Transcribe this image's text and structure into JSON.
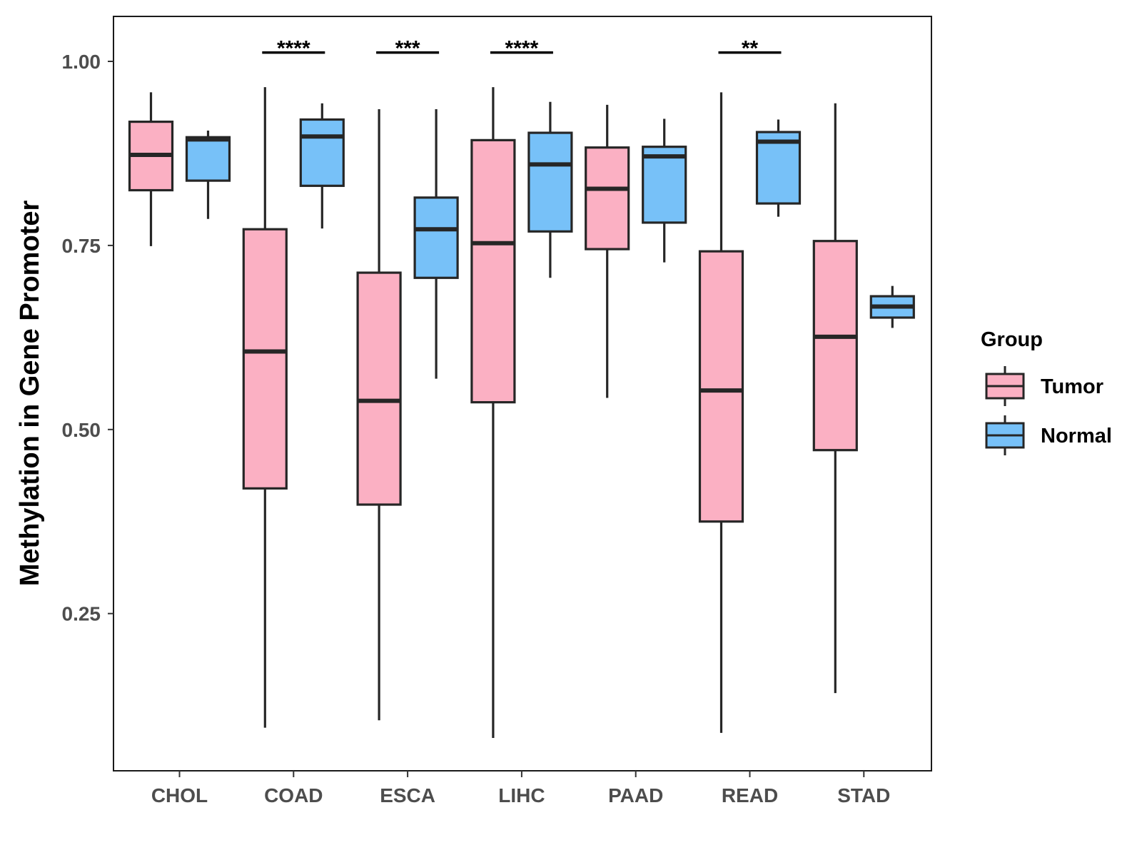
{
  "chart_data": {
    "type": "boxplot",
    "title": "",
    "xlabel": "",
    "ylabel": "Methylation in Gene Promoter",
    "ylim": [
      0.05,
      1.065
    ],
    "yticks": [
      0.25,
      0.5,
      0.75,
      1.0
    ],
    "ytick_labels": [
      "0.25",
      "0.50",
      "0.75",
      "1.00"
    ],
    "grid": false,
    "categories": [
      "CHOL",
      "COAD",
      "ESCA",
      "LIHC",
      "PAAD",
      "READ",
      "STAD"
    ],
    "legend": {
      "title": "Group",
      "position": "right",
      "entries": [
        {
          "name": "Tumor",
          "color": "#FBB0C3"
        },
        {
          "name": "Normal",
          "color": "#77C1F8"
        }
      ]
    },
    "series": [
      {
        "name": "Tumor",
        "color": "#FBB0C3",
        "boxes": [
          {
            "whisker_low": 0.749,
            "q1": 0.825,
            "median": 0.873,
            "q3": 0.918,
            "whisker_high": 0.958
          },
          {
            "whisker_low": 0.095,
            "q1": 0.42,
            "median": 0.606,
            "q3": 0.772,
            "whisker_high": 0.965
          },
          {
            "whisker_low": 0.105,
            "q1": 0.398,
            "median": 0.539,
            "q3": 0.713,
            "whisker_high": 0.935
          },
          {
            "whisker_low": 0.081,
            "q1": 0.537,
            "median": 0.753,
            "q3": 0.893,
            "whisker_high": 0.965
          },
          {
            "whisker_low": 0.543,
            "q1": 0.745,
            "median": 0.827,
            "q3": 0.883,
            "whisker_high": 0.941
          },
          {
            "whisker_low": 0.088,
            "q1": 0.375,
            "median": 0.553,
            "q3": 0.742,
            "whisker_high": 0.958
          },
          {
            "whisker_low": 0.142,
            "q1": 0.472,
            "median": 0.626,
            "q3": 0.756,
            "whisker_high": 0.943
          }
        ]
      },
      {
        "name": "Normal",
        "color": "#77C1F8",
        "boxes": [
          {
            "whisker_low": 0.786,
            "q1": 0.838,
            "median": 0.894,
            "q3": 0.897,
            "whisker_high": 0.906
          },
          {
            "whisker_low": 0.773,
            "q1": 0.831,
            "median": 0.898,
            "q3": 0.921,
            "whisker_high": 0.943
          },
          {
            "whisker_low": 0.569,
            "q1": 0.706,
            "median": 0.772,
            "q3": 0.815,
            "whisker_high": 0.935
          },
          {
            "whisker_low": 0.706,
            "q1": 0.769,
            "median": 0.86,
            "q3": 0.903,
            "whisker_high": 0.945
          },
          {
            "whisker_low": 0.727,
            "q1": 0.781,
            "median": 0.871,
            "q3": 0.884,
            "whisker_high": 0.922
          },
          {
            "whisker_low": 0.789,
            "q1": 0.807,
            "median": 0.891,
            "q3": 0.904,
            "whisker_high": 0.921
          },
          {
            "whisker_low": 0.638,
            "q1": 0.652,
            "median": 0.667,
            "q3": 0.681,
            "whisker_high": 0.695
          }
        ]
      }
    ],
    "annotations": [
      {
        "category": "COAD",
        "label": "****",
        "y": 1.012
      },
      {
        "category": "ESCA",
        "label": "***",
        "y": 1.012
      },
      {
        "category": "LIHC",
        "label": "****",
        "y": 1.012
      },
      {
        "category": "READ",
        "label": "**",
        "y": 1.012
      }
    ]
  }
}
